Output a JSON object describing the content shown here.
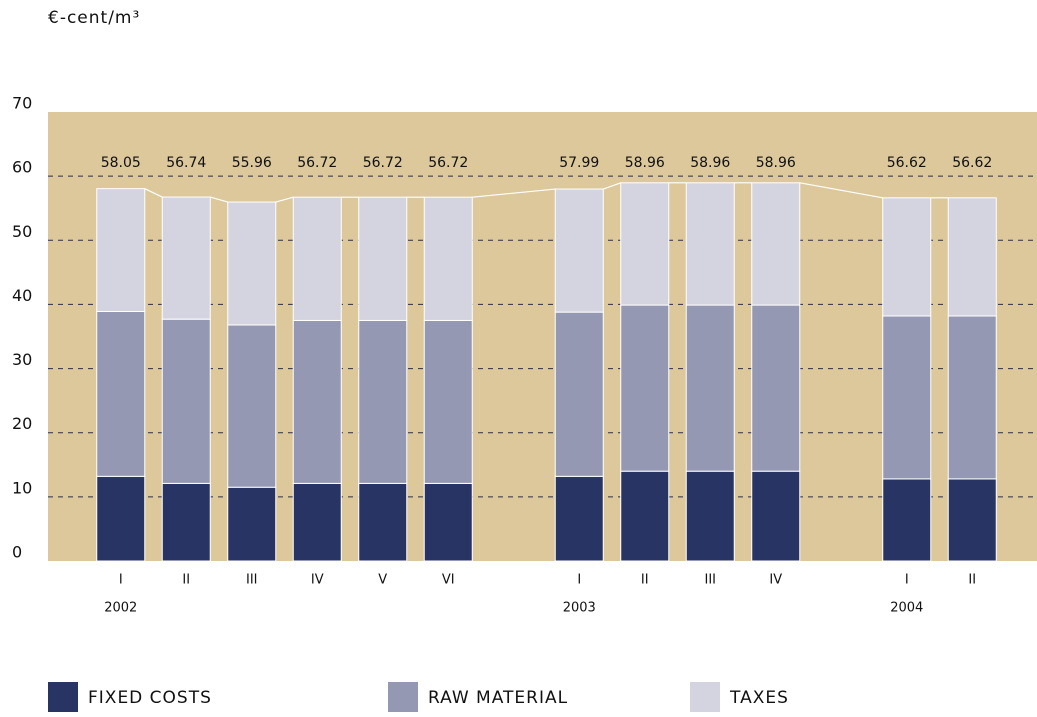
{
  "chart_data": {
    "type": "stacked_bar",
    "y_axis_label": "€-cent/m³",
    "categories": [
      "I",
      "II",
      "III",
      "IV",
      "V",
      "VI",
      null,
      "I",
      "II",
      "III",
      "IV",
      null,
      "I",
      "II"
    ],
    "year_labels": [
      "2002",
      null,
      null,
      null,
      null,
      null,
      null,
      "2003",
      null,
      null,
      null,
      null,
      "2004",
      null
    ],
    "series": [
      {
        "name": "FIXED COSTS",
        "color": "#283464",
        "values": [
          13.2,
          12.1,
          11.5,
          12.1,
          12.1,
          12.1,
          null,
          13.2,
          14.0,
          14.0,
          14.0,
          null,
          12.8,
          12.8
        ]
      },
      {
        "name": "RAW MATERIAL",
        "color": "#9598b2",
        "values": [
          25.7,
          25.6,
          25.3,
          25.4,
          25.4,
          25.4,
          null,
          25.6,
          25.9,
          25.9,
          25.9,
          null,
          25.4,
          25.4
        ]
      },
      {
        "name": "TAXES",
        "color": "#d3d4e0",
        "values": [
          19.15,
          19.04,
          19.16,
          19.22,
          19.22,
          19.22,
          null,
          19.19,
          19.06,
          19.06,
          19.06,
          null,
          18.42,
          18.42
        ]
      }
    ],
    "totals": [
      58.05,
      56.74,
      55.96,
      56.72,
      56.72,
      56.72,
      null,
      57.99,
      58.96,
      58.96,
      58.96,
      null,
      56.62,
      56.62
    ],
    "ylim": [
      0,
      70
    ],
    "yticks": [
      0,
      10,
      20,
      30,
      40,
      50,
      60,
      70
    ],
    "grid": true,
    "background": "#dcc89b"
  }
}
